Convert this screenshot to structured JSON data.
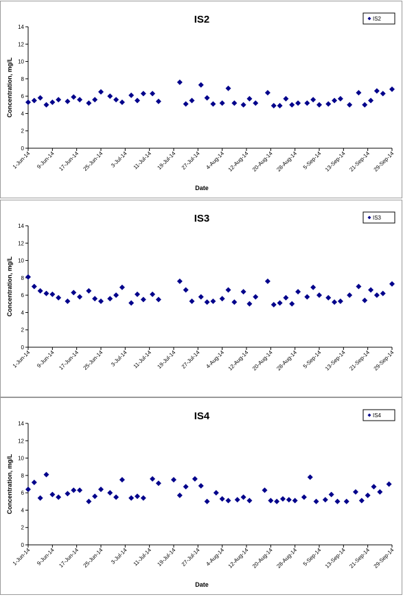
{
  "chart_data": [
    {
      "type": "scatter",
      "title": "IS2",
      "xlabel": "Date",
      "ylabel": "Concentration, mg/L",
      "ylim": [
        0,
        14
      ],
      "yticks": [
        "0",
        "2",
        "4",
        "6",
        "8",
        "10",
        "12",
        "14"
      ],
      "xlim": [
        "2014-06-01",
        "2014-09-29"
      ],
      "xticks": [
        "1-Jun-14",
        "9-Jun-14",
        "17-Jun-14",
        "25-Jun-14",
        "3-Jul-14",
        "11-Jul-14",
        "19-Jul-14",
        "27-Jul-14",
        "4-Aug-14",
        "12-Aug-14",
        "20-Aug-14",
        "28-Aug-14",
        "5-Sep-14",
        "13-Sep-14",
        "21-Sep-14",
        "29-Sep-14"
      ],
      "grid": false,
      "legend_position": "top-right",
      "marker_color": "#00008B",
      "series": [
        {
          "name": "IS2",
          "points": [
            [
              "2014-06-01",
              5.3
            ],
            [
              "2014-06-03",
              5.5
            ],
            [
              "2014-06-05",
              5.8
            ],
            [
              "2014-06-07",
              5.0
            ],
            [
              "2014-06-09",
              5.3
            ],
            [
              "2014-06-11",
              5.6
            ],
            [
              "2014-06-14",
              5.4
            ],
            [
              "2014-06-16",
              5.9
            ],
            [
              "2014-06-18",
              5.6
            ],
            [
              "2014-06-21",
              5.2
            ],
            [
              "2014-06-23",
              5.6
            ],
            [
              "2014-06-25",
              6.5
            ],
            [
              "2014-06-28",
              6.0
            ],
            [
              "2014-06-30",
              5.6
            ],
            [
              "2014-07-02",
              5.3
            ],
            [
              "2014-07-05",
              6.1
            ],
            [
              "2014-07-07",
              5.5
            ],
            [
              "2014-07-09",
              6.3
            ],
            [
              "2014-07-12",
              6.3
            ],
            [
              "2014-07-14",
              5.4
            ],
            [
              "2014-07-21",
              7.6
            ],
            [
              "2014-07-23",
              5.1
            ],
            [
              "2014-07-25",
              5.5
            ],
            [
              "2014-07-28",
              7.3
            ],
            [
              "2014-07-30",
              5.8
            ],
            [
              "2014-08-01",
              5.1
            ],
            [
              "2014-08-04",
              5.2
            ],
            [
              "2014-08-06",
              6.9
            ],
            [
              "2014-08-08",
              5.2
            ],
            [
              "2014-08-11",
              5.0
            ],
            [
              "2014-08-13",
              5.7
            ],
            [
              "2014-08-15",
              5.2
            ],
            [
              "2014-08-19",
              6.4
            ],
            [
              "2014-08-21",
              4.9
            ],
            [
              "2014-08-23",
              4.9
            ],
            [
              "2014-08-25",
              5.7
            ],
            [
              "2014-08-27",
              5.0
            ],
            [
              "2014-08-29",
              5.2
            ],
            [
              "2014-09-01",
              5.2
            ],
            [
              "2014-09-03",
              5.6
            ],
            [
              "2014-09-05",
              5.0
            ],
            [
              "2014-09-08",
              5.1
            ],
            [
              "2014-09-10",
              5.5
            ],
            [
              "2014-09-12",
              5.7
            ],
            [
              "2014-09-15",
              5.0
            ],
            [
              "2014-09-18",
              6.4
            ],
            [
              "2014-09-20",
              5.0
            ],
            [
              "2014-09-22",
              5.5
            ],
            [
              "2014-09-24",
              6.6
            ],
            [
              "2014-09-26",
              6.3
            ],
            [
              "2014-09-29",
              6.8
            ]
          ]
        }
      ]
    },
    {
      "type": "scatter",
      "title": "IS3",
      "xlabel": "",
      "ylabel": "Concentration, mg/L",
      "ylim": [
        0,
        14
      ],
      "yticks": [
        "0",
        "2",
        "4",
        "6",
        "8",
        "10",
        "12",
        "14"
      ],
      "xlim": [
        "2014-06-01",
        "2014-09-29"
      ],
      "xticks": [
        "1-Jun-14",
        "9-Jun-14",
        "17-Jun-14",
        "25-Jun-14",
        "3-Jul-14",
        "11-Jul-14",
        "19-Jul-14",
        "27-Jul-14",
        "4-Aug-14",
        "12-Aug-14",
        "20-Aug-14",
        "28-Aug-14",
        "5-Sep-14",
        "13-Sep-14",
        "21-Sep-14",
        "29-Sep-14"
      ],
      "grid": false,
      "legend_position": "top-right",
      "marker_color": "#00008B",
      "series": [
        {
          "name": "IS3",
          "points": [
            [
              "2014-06-01",
              8.1
            ],
            [
              "2014-06-03",
              7.0
            ],
            [
              "2014-06-05",
              6.5
            ],
            [
              "2014-06-07",
              6.2
            ],
            [
              "2014-06-09",
              6.1
            ],
            [
              "2014-06-11",
              5.7
            ],
            [
              "2014-06-14",
              5.3
            ],
            [
              "2014-06-16",
              6.3
            ],
            [
              "2014-06-18",
              5.8
            ],
            [
              "2014-06-21",
              6.5
            ],
            [
              "2014-06-23",
              5.6
            ],
            [
              "2014-06-25",
              5.3
            ],
            [
              "2014-06-28",
              5.6
            ],
            [
              "2014-06-30",
              6.0
            ],
            [
              "2014-07-02",
              6.9
            ],
            [
              "2014-07-05",
              5.1
            ],
            [
              "2014-07-07",
              6.1
            ],
            [
              "2014-07-09",
              5.5
            ],
            [
              "2014-07-12",
              6.1
            ],
            [
              "2014-07-14",
              5.5
            ],
            [
              "2014-07-21",
              7.6
            ],
            [
              "2014-07-23",
              6.6
            ],
            [
              "2014-07-25",
              5.3
            ],
            [
              "2014-07-28",
              5.8
            ],
            [
              "2014-07-30",
              5.2
            ],
            [
              "2014-08-01",
              5.3
            ],
            [
              "2014-08-04",
              5.6
            ],
            [
              "2014-08-06",
              6.6
            ],
            [
              "2014-08-08",
              5.2
            ],
            [
              "2014-08-11",
              6.4
            ],
            [
              "2014-08-13",
              5.0
            ],
            [
              "2014-08-15",
              5.8
            ],
            [
              "2014-08-19",
              7.6
            ],
            [
              "2014-08-21",
              4.9
            ],
            [
              "2014-08-23",
              5.1
            ],
            [
              "2014-08-25",
              5.7
            ],
            [
              "2014-08-27",
              5.0
            ],
            [
              "2014-08-29",
              6.4
            ],
            [
              "2014-09-01",
              5.8
            ],
            [
              "2014-09-03",
              6.9
            ],
            [
              "2014-09-05",
              6.0
            ],
            [
              "2014-09-08",
              5.7
            ],
            [
              "2014-09-10",
              5.2
            ],
            [
              "2014-09-12",
              5.3
            ],
            [
              "2014-09-15",
              6.0
            ],
            [
              "2014-09-18",
              7.0
            ],
            [
              "2014-09-20",
              5.4
            ],
            [
              "2014-09-22",
              6.6
            ],
            [
              "2014-09-24",
              6.0
            ],
            [
              "2014-09-26",
              6.2
            ],
            [
              "2014-09-29",
              7.3
            ]
          ]
        }
      ]
    },
    {
      "type": "scatter",
      "title": "IS4",
      "xlabel": "Date",
      "ylabel": "Concentration, mg/L",
      "ylim": [
        0,
        14
      ],
      "yticks": [
        "0",
        "2",
        "4",
        "6",
        "8",
        "10",
        "12",
        "14"
      ],
      "xlim": [
        "2014-06-01",
        "2014-09-29"
      ],
      "xticks": [
        "1-Jun-14",
        "9-Jun-14",
        "17-Jun-14",
        "25-Jun-14",
        "3-Jul-14",
        "11-Jul-14",
        "19-Jul-14",
        "27-Jul-14",
        "4-Aug-14",
        "12-Aug-14",
        "20-Aug-14",
        "28-Aug-14",
        "5-Sep-14",
        "13-Sep-14",
        "21-Sep-14",
        "29-Sep-14"
      ],
      "grid": false,
      "legend_position": "top-right",
      "marker_color": "#00008B",
      "series": [
        {
          "name": "IS4",
          "points": [
            [
              "2014-06-01",
              6.4
            ],
            [
              "2014-06-03",
              7.2
            ],
            [
              "2014-06-05",
              5.4
            ],
            [
              "2014-06-07",
              8.1
            ],
            [
              "2014-06-09",
              5.8
            ],
            [
              "2014-06-11",
              5.5
            ],
            [
              "2014-06-14",
              5.9
            ],
            [
              "2014-06-16",
              6.3
            ],
            [
              "2014-06-18",
              6.3
            ],
            [
              "2014-06-21",
              5.0
            ],
            [
              "2014-06-23",
              5.6
            ],
            [
              "2014-06-25",
              6.4
            ],
            [
              "2014-06-28",
              6.0
            ],
            [
              "2014-06-30",
              5.5
            ],
            [
              "2014-07-02",
              7.5
            ],
            [
              "2014-07-05",
              5.4
            ],
            [
              "2014-07-07",
              5.6
            ],
            [
              "2014-07-09",
              5.4
            ],
            [
              "2014-07-12",
              7.6
            ],
            [
              "2014-07-14",
              7.1
            ],
            [
              "2014-07-19",
              7.5
            ],
            [
              "2014-07-21",
              5.7
            ],
            [
              "2014-07-23",
              6.7
            ],
            [
              "2014-07-26",
              7.6
            ],
            [
              "2014-07-28",
              6.8
            ],
            [
              "2014-07-30",
              5.0
            ],
            [
              "2014-08-02",
              6.0
            ],
            [
              "2014-08-04",
              5.3
            ],
            [
              "2014-08-06",
              5.1
            ],
            [
              "2014-08-09",
              5.2
            ],
            [
              "2014-08-11",
              5.5
            ],
            [
              "2014-08-13",
              5.1
            ],
            [
              "2014-08-18",
              6.3
            ],
            [
              "2014-08-20",
              5.1
            ],
            [
              "2014-08-22",
              5.0
            ],
            [
              "2014-08-24",
              5.3
            ],
            [
              "2014-08-26",
              5.2
            ],
            [
              "2014-08-28",
              5.1
            ],
            [
              "2014-08-31",
              5.5
            ],
            [
              "2014-09-02",
              7.8
            ],
            [
              "2014-09-04",
              5.0
            ],
            [
              "2014-09-07",
              5.2
            ],
            [
              "2014-09-09",
              5.8
            ],
            [
              "2014-09-11",
              5.0
            ],
            [
              "2014-09-14",
              5.0
            ],
            [
              "2014-09-17",
              6.1
            ],
            [
              "2014-09-19",
              5.1
            ],
            [
              "2014-09-21",
              5.7
            ],
            [
              "2014-09-23",
              6.7
            ],
            [
              "2014-09-25",
              6.1
            ],
            [
              "2014-09-28",
              7.0
            ]
          ]
        }
      ]
    }
  ]
}
